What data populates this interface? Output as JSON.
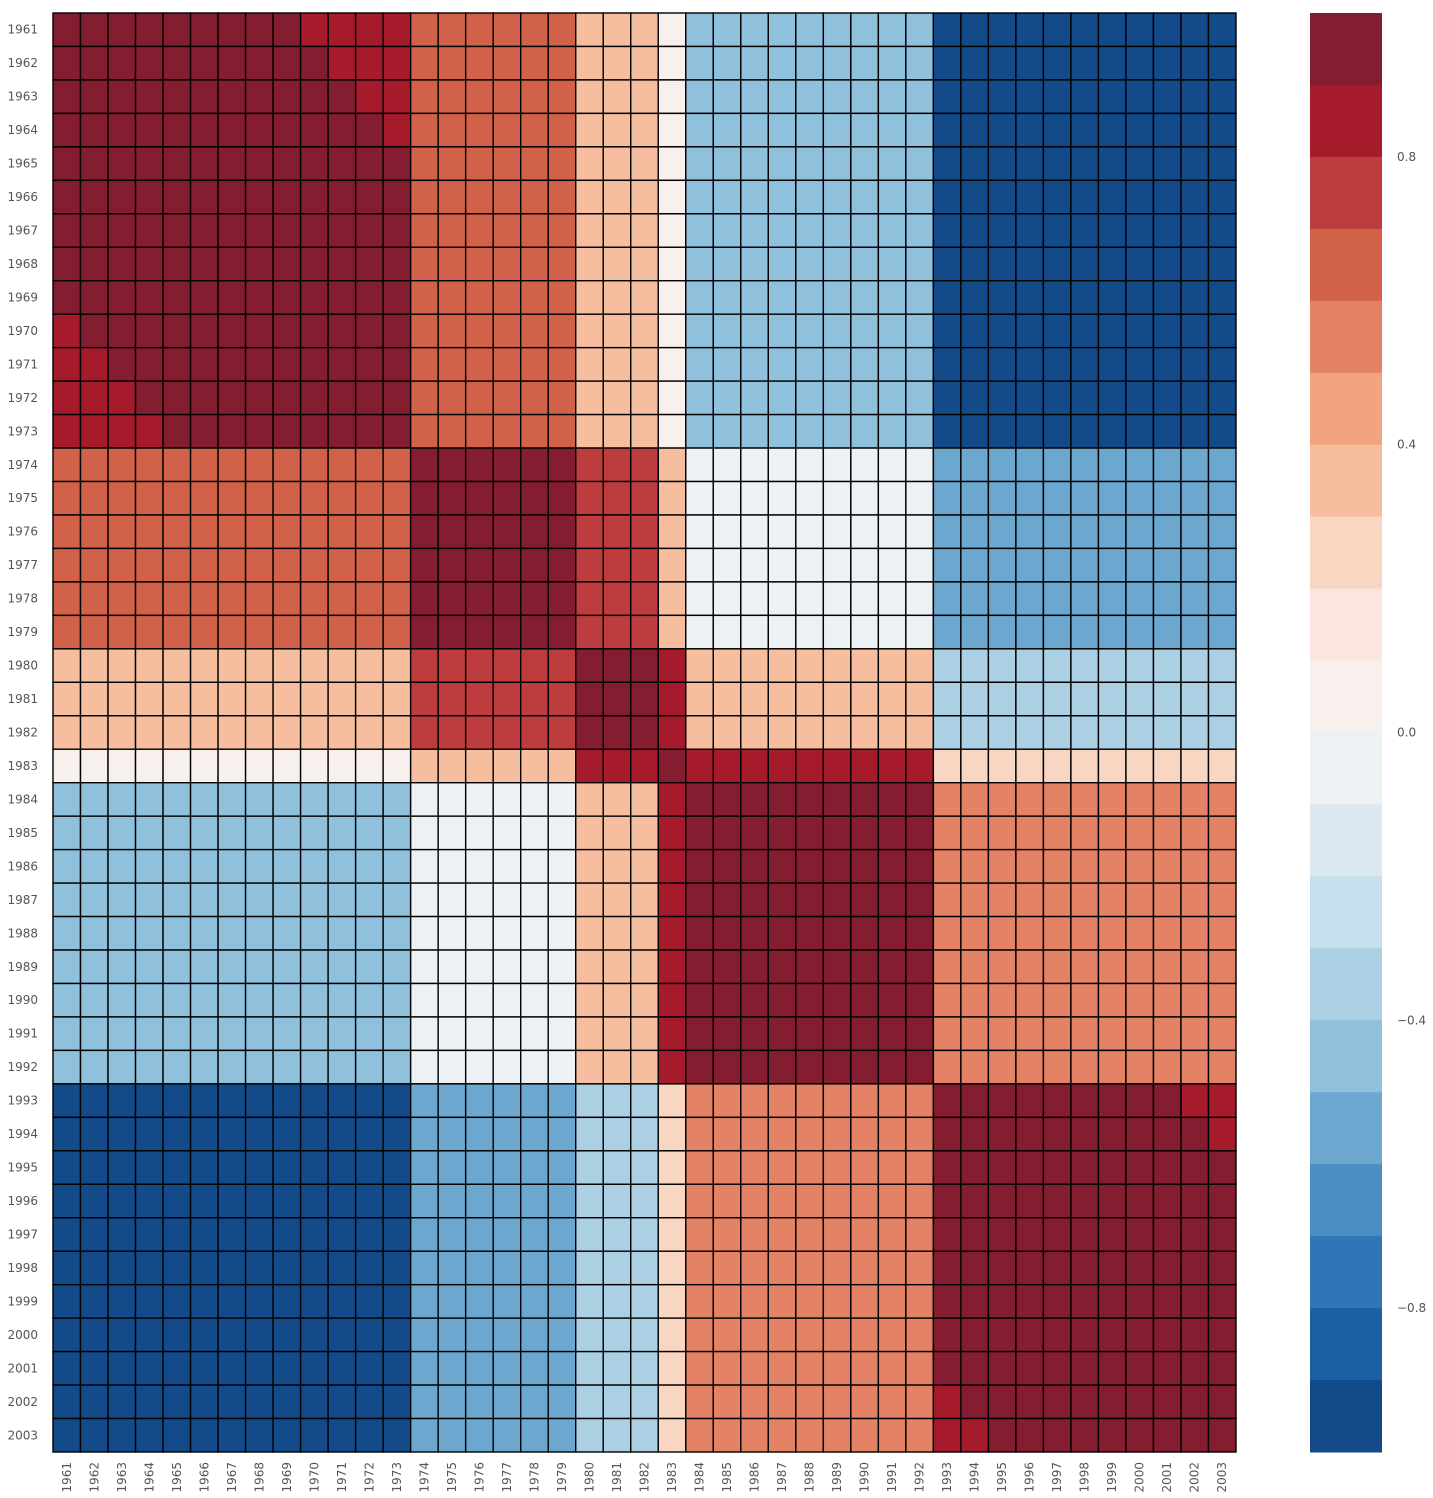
{
  "chart_data": {
    "type": "heatmap",
    "title": "",
    "xlabel": "",
    "ylabel": "",
    "x_categories": [
      "1961",
      "1962",
      "1963",
      "1964",
      "1965",
      "1966",
      "1967",
      "1968",
      "1969",
      "1970",
      "1971",
      "1972",
      "1973",
      "1974",
      "1975",
      "1976",
      "1977",
      "1978",
      "1979",
      "1980",
      "1981",
      "1982",
      "1983",
      "1984",
      "1985",
      "1986",
      "1987",
      "1988",
      "1989",
      "1990",
      "1991",
      "1992",
      "1993",
      "1994",
      "1995",
      "1996",
      "1997",
      "1998",
      "1999",
      "2000",
      "2001",
      "2002",
      "2003"
    ],
    "y_categories": [
      "1961",
      "1962",
      "1963",
      "1964",
      "1965",
      "1966",
      "1967",
      "1968",
      "1969",
      "1970",
      "1971",
      "1972",
      "1973",
      "1974",
      "1975",
      "1976",
      "1977",
      "1978",
      "1979",
      "1980",
      "1981",
      "1982",
      "1983",
      "1984",
      "1985",
      "1986",
      "1987",
      "1988",
      "1989",
      "1990",
      "1991",
      "1992",
      "1993",
      "1994",
      "1995",
      "1996",
      "1997",
      "1998",
      "1999",
      "2000",
      "2001",
      "2002",
      "2003"
    ],
    "value_range": [
      -1,
      1
    ],
    "colorbar": {
      "ticks": [
        0.8,
        0.4,
        0.0,
        -0.4,
        -0.8
      ],
      "tick_labels": [
        "0.8",
        "0.4",
        "0.0",
        "−0.4",
        "−0.8"
      ],
      "levels": 20,
      "colors": [
        "#841d2f",
        "#a51b2c",
        "#bd3c3d",
        "#d16148",
        "#e38264",
        "#f2a37f",
        "#f6be9f",
        "#f9d6c2",
        "#fae6de",
        "#f8f0ed",
        "#ecf1f4",
        "#dbe7f1",
        "#c6dfed",
        "#abd0e4",
        "#8fc1dc",
        "#6ca7cf",
        "#4a8dc2",
        "#2e76b6",
        "#1b5fa5",
        "#134a8a"
      ]
    },
    "series_model": "smooth symmetric correlation surface of years 1961–2003; values estimated from cell colours",
    "blocks": [
      {
        "from": 1961,
        "to": 1973
      },
      {
        "from": 1974,
        "to": 1979
      },
      {
        "from": 1980,
        "to": 1982
      },
      {
        "from": 1983,
        "to": 1983
      },
      {
        "from": 1984,
        "to": 1992
      },
      {
        "from": 1993,
        "to": 2003
      }
    ],
    "block_correlation": [
      [
        0.96,
        0.65,
        0.3,
        0.0,
        -0.5,
        -0.9
      ],
      [
        0.65,
        0.96,
        0.75,
        0.35,
        -0.1,
        -0.6
      ],
      [
        0.3,
        0.75,
        0.96,
        0.85,
        0.3,
        -0.35
      ],
      [
        0.0,
        0.35,
        0.85,
        0.96,
        0.88,
        0.25
      ],
      [
        -0.5,
        -0.1,
        0.3,
        0.88,
        0.96,
        0.55
      ],
      [
        -0.9,
        -0.6,
        -0.35,
        0.25,
        0.55,
        0.96
      ]
    ],
    "grid": true,
    "legend": "colorbar-right"
  }
}
